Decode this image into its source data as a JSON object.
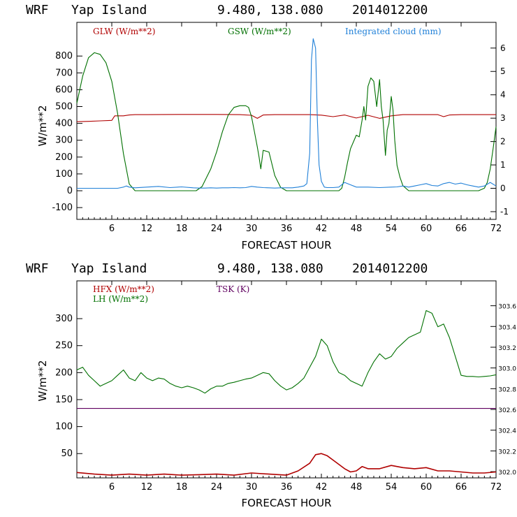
{
  "chart_data": [
    {
      "type": "line",
      "header": {
        "model": "WRF",
        "location": "Yap Island",
        "coords": "9.480, 138.080",
        "init": "2014012200"
      },
      "xlabel": "FORECAST HOUR",
      "ylabel": "W/m**2",
      "xlim": [
        0,
        72
      ],
      "ylim": [
        -170,
        1000
      ],
      "y2lim": [
        -1.33,
        7.1
      ],
      "xticks": [
        "6",
        "12",
        "18",
        "24",
        "30",
        "36",
        "42",
        "48",
        "54",
        "60",
        "66",
        "72"
      ],
      "yticks": [
        "-100",
        "0",
        "100",
        "200",
        "300",
        "400",
        "500",
        "600",
        "700",
        "800"
      ],
      "y2ticks": [
        "-1",
        "0",
        "1",
        "2",
        "3",
        "4",
        "5",
        "6"
      ],
      "series": [
        {
          "name": "GLW (W/m**2)",
          "color": "#b00000",
          "axis": "left",
          "x": [
            0,
            2,
            4,
            6,
            6.5,
            8,
            9,
            10,
            12,
            18,
            24,
            28,
            30,
            31,
            32,
            34,
            36,
            40,
            42,
            44,
            46,
            48,
            50,
            52,
            54,
            56,
            58,
            60,
            62,
            63,
            64,
            66,
            68,
            70,
            72
          ],
          "y": [
            410,
            412,
            415,
            418,
            445,
            445,
            450,
            452,
            452,
            453,
            453,
            452,
            448,
            430,
            450,
            452,
            452,
            452,
            449,
            440,
            450,
            432,
            448,
            430,
            445,
            452,
            452,
            452,
            452,
            440,
            450,
            452,
            452,
            452,
            452
          ]
        },
        {
          "name": "GSW (W/m**2)",
          "color": "#007000",
          "axis": "left",
          "x": [
            0,
            1,
            2,
            3,
            4,
            5,
            6,
            7,
            8,
            9,
            10,
            20,
            20.5,
            21.5,
            23,
            24,
            25,
            26,
            27,
            28,
            29,
            29.5,
            30,
            30.5,
            31,
            31.3,
            31.6,
            32,
            33,
            34,
            35,
            36,
            37,
            39,
            41,
            42,
            43,
            44,
            44.5,
            45,
            45.5,
            46,
            46.5,
            47,
            48,
            48.5,
            49,
            49.3,
            49.6,
            50,
            50.5,
            51,
            51.5,
            52,
            52.3,
            52.6,
            53,
            53.3,
            53.6,
            54,
            54.3,
            54.6,
            55,
            55.5,
            56,
            57,
            58,
            60,
            62,
            64,
            66,
            68,
            69,
            70,
            70.5,
            71,
            71.5,
            72
          ],
          "y": [
            520,
            680,
            790,
            820,
            810,
            760,
            650,
            460,
            220,
            40,
            0,
            0,
            0,
            25,
            130,
            230,
            350,
            450,
            495,
            505,
            505,
            495,
            440,
            350,
            260,
            200,
            130,
            240,
            230,
            90,
            20,
            0,
            0,
            0,
            0,
            0,
            0,
            0,
            0,
            0,
            15,
            80,
            170,
            250,
            330,
            320,
            420,
            500,
            420,
            620,
            670,
            650,
            500,
            660,
            500,
            420,
            210,
            360,
            400,
            560,
            480,
            300,
            150,
            80,
            30,
            0,
            0,
            0,
            0,
            0,
            0,
            0,
            0,
            15,
            50,
            130,
            250,
            380
          ]
        },
        {
          "name": "Integrated cloud (mm)",
          "color": "#2080d8",
          "axis": "right",
          "x": [
            0,
            7,
            8,
            8.5,
            9,
            10,
            12,
            14,
            16,
            18,
            20,
            21,
            22,
            23,
            24,
            25,
            26,
            27,
            28,
            29,
            30,
            31,
            32,
            33,
            34,
            35,
            36,
            37,
            38,
            39,
            39.5,
            40,
            40.3,
            40.6,
            41,
            41.3,
            41.6,
            42,
            42.5,
            43,
            44,
            45,
            46,
            47,
            48,
            50,
            52,
            54,
            55,
            56,
            57,
            58,
            59,
            60,
            61,
            62,
            63,
            64,
            65,
            66,
            67,
            68,
            69,
            70,
            71,
            72
          ],
          "y": [
            0,
            0,
            0.05,
            0.1,
            0.05,
            0.02,
            0.05,
            0.08,
            0.03,
            0.06,
            0.02,
            0.01,
            0.01,
            0.02,
            0.01,
            0.02,
            0.02,
            0.03,
            0.02,
            0.03,
            0.08,
            0.05,
            0.03,
            0.02,
            0.01,
            0.02,
            0.02,
            0.02,
            0.05,
            0.1,
            0.2,
            1.5,
            5.5,
            6.4,
            6,
            3,
            1,
            0.3,
            0.05,
            0.03,
            0.03,
            0.05,
            0.25,
            0.15,
            0.05,
            0.05,
            0.03,
            0.05,
            0.06,
            0.1,
            0.05,
            0.1,
            0.15,
            0.2,
            0.12,
            0.1,
            0.2,
            0.25,
            0.18,
            0.22,
            0.15,
            0.1,
            0.05,
            0.1,
            0.25,
            0.1
          ]
        }
      ],
      "legend": [
        "GLW (W/m**2)",
        "GSW (W/m**2)",
        "Integrated cloud (mm)"
      ]
    },
    {
      "type": "line",
      "header": {
        "model": "WRF",
        "location": "Yap Island",
        "coords": "9.480, 138.080",
        "init": "2014012200"
      },
      "xlabel": "FORECAST HOUR",
      "ylabel": "W/m**2",
      "xlim": [
        0,
        72
      ],
      "ylim": [
        5,
        370
      ],
      "y2lim": [
        301.94,
        303.84
      ],
      "xticks": [
        "6",
        "12",
        "18",
        "24",
        "30",
        "36",
        "42",
        "48",
        "54",
        "60",
        "66",
        "72"
      ],
      "yticks": [
        "50",
        "100",
        "150",
        "200",
        "250",
        "300"
      ],
      "y2ticks": [
        "302.0",
        "302.2",
        "302.4",
        "302.6",
        "302.8",
        "303.0",
        "303.2",
        "303.4",
        "303.6"
      ],
      "series": [
        {
          "name": "HFX (W/m**2)",
          "color": "#b00000",
          "axis": "left",
          "x": [
            0,
            3,
            6,
            9,
            12,
            15,
            18,
            21,
            24,
            27,
            30,
            33,
            36,
            38,
            40,
            41,
            42,
            43,
            44,
            46,
            47,
            48,
            49,
            50,
            52,
            54,
            56,
            58,
            60,
            62,
            64,
            66,
            68,
            70,
            72
          ],
          "y": [
            15,
            12,
            10,
            12,
            10,
            12,
            10,
            11,
            12,
            10,
            14,
            12,
            10,
            18,
            32,
            48,
            50,
            46,
            38,
            22,
            16,
            18,
            26,
            22,
            22,
            28,
            24,
            22,
            24,
            18,
            18,
            16,
            14,
            14,
            16
          ]
        },
        {
          "name": "LH (W/m**2)",
          "color": "#007000",
          "axis": "left",
          "x": [
            0,
            1,
            2,
            3,
            4,
            5,
            6,
            7,
            8,
            9,
            10,
            11,
            12,
            13,
            14,
            15,
            16,
            17,
            18,
            19,
            20,
            21,
            22,
            23,
            24,
            25,
            26,
            27,
            28,
            29,
            30,
            31,
            32,
            33,
            34,
            35,
            36,
            37,
            38,
            39,
            40,
            41,
            42,
            43,
            44,
            45,
            46,
            47,
            48,
            49,
            50,
            51,
            52,
            53,
            54,
            55,
            56,
            57,
            58,
            59,
            60,
            61,
            62,
            63,
            64,
            65,
            66,
            67,
            68,
            69,
            70,
            71,
            72
          ],
          "y": [
            205,
            210,
            195,
            185,
            175,
            180,
            185,
            195,
            205,
            190,
            185,
            200,
            190,
            185,
            190,
            188,
            180,
            175,
            172,
            175,
            172,
            168,
            162,
            170,
            175,
            175,
            180,
            182,
            185,
            188,
            190,
            195,
            200,
            198,
            185,
            175,
            168,
            172,
            180,
            190,
            210,
            230,
            262,
            250,
            220,
            200,
            195,
            185,
            180,
            175,
            200,
            220,
            235,
            225,
            230,
            245,
            255,
            265,
            270,
            275,
            315,
            310,
            285,
            290,
            265,
            230,
            195,
            193,
            193,
            192,
            193,
            194,
            196
          ]
        },
        {
          "name": "TSK (K)",
          "color": "#600060",
          "axis": "right",
          "x": [
            0,
            72
          ],
          "y": [
            302.61,
            302.61
          ]
        }
      ],
      "legend": [
        "HFX (W/m**2)",
        "LH (W/m**2)",
        "TSK (K)"
      ]
    }
  ]
}
